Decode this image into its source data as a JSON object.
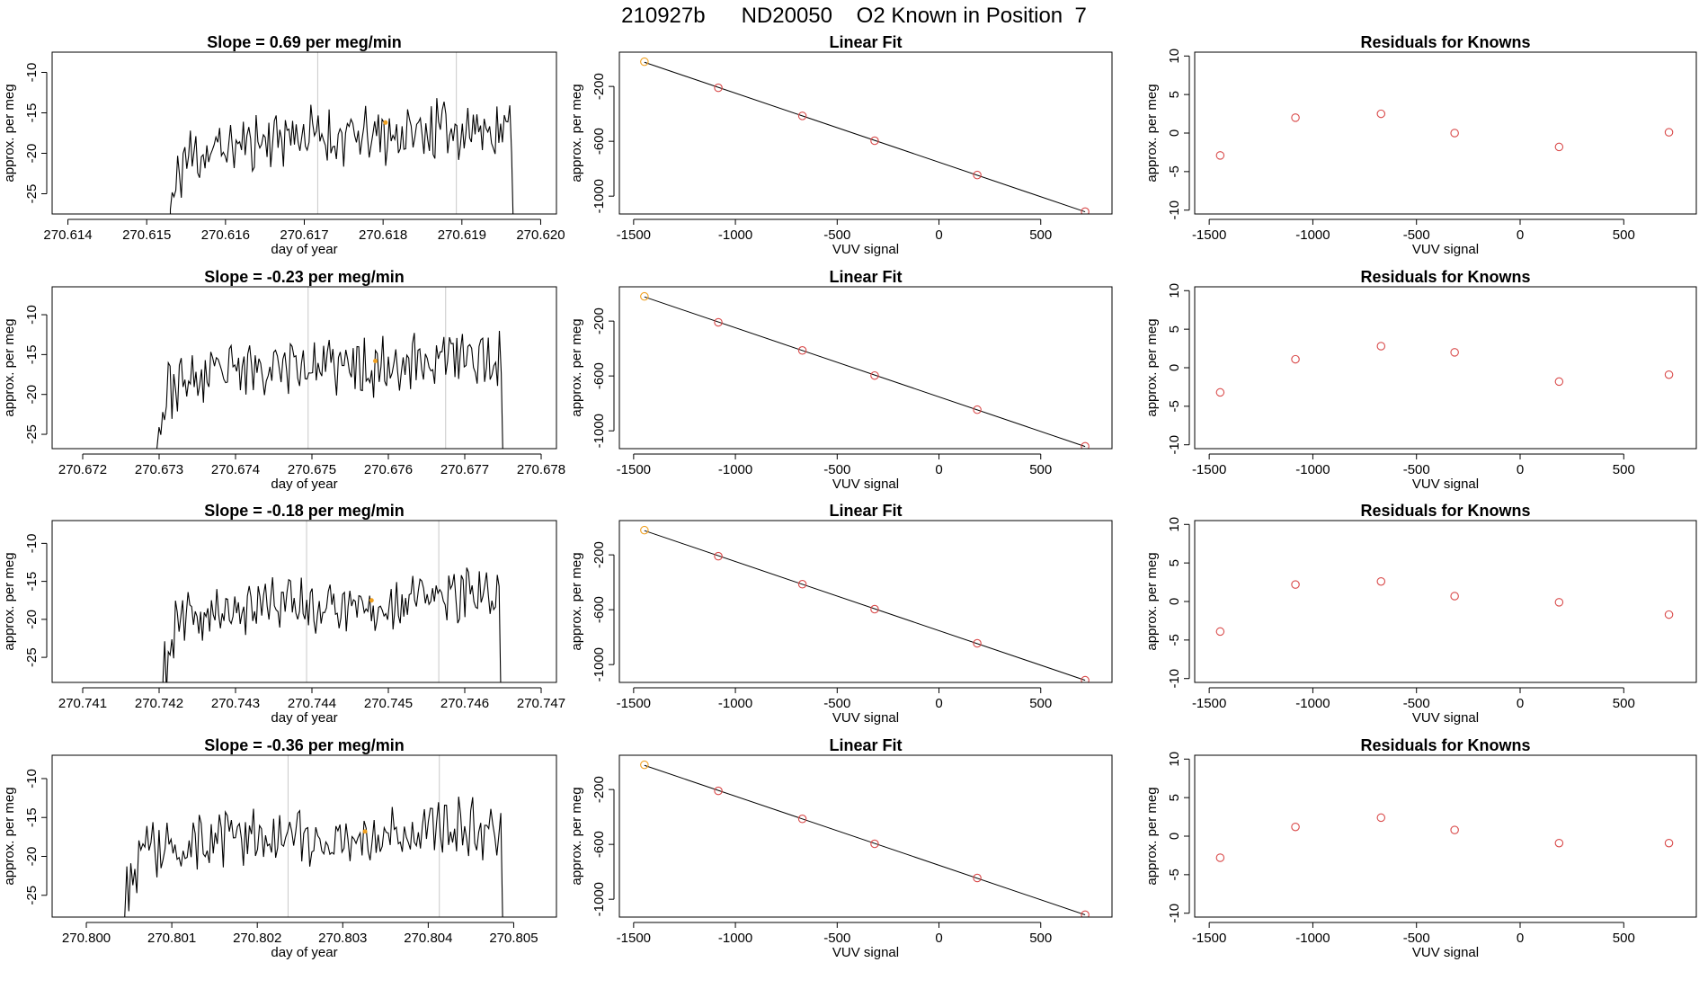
{
  "header": {
    "title": "210927b      ND20050    O2 Known in Position  7"
  },
  "colors": {
    "line": "#000000",
    "grid_vline": "#c8c8c8",
    "point": "#d94a4a",
    "highlight": "#f0a020"
  },
  "chart_data": [
    {
      "type": "line",
      "panel": "timeseries",
      "row": 1,
      "title": "Slope =  0.69  per meg/min",
      "xlabel": "day of year",
      "ylabel": "approx. per meg",
      "xlim": [
        270.6138,
        270.6202
      ],
      "ylim": [
        -27.5,
        -7.5
      ],
      "xticks": [
        "270.614",
        "270.615",
        "270.616",
        "270.617",
        "270.618",
        "270.619",
        "270.620"
      ],
      "xtick_values": [
        270.614,
        270.615,
        270.616,
        270.617,
        270.618,
        270.619,
        270.62
      ],
      "yticks": [
        -25,
        -20,
        -15,
        -10
      ],
      "vlines": [
        270.61717,
        270.61893
      ],
      "x_range": [
        270.6153,
        270.6197
      ],
      "ramp_start": -27,
      "plateau": -17.5,
      "highlight": [
        270.61803,
        -16.2
      ],
      "seed": 11
    },
    {
      "type": "line",
      "panel": "timeseries",
      "row": 2,
      "title": "Slope =  -0.23  per meg/min",
      "xlabel": "day of year",
      "ylabel": "approx. per meg",
      "xlim": [
        270.6716,
        270.6782
      ],
      "ylim": [
        -26.8,
        -6.5
      ],
      "xticks": [
        "270.672",
        "270.673",
        "270.674",
        "270.675",
        "270.676",
        "270.677",
        "270.678"
      ],
      "xtick_values": [
        270.672,
        270.673,
        270.674,
        270.675,
        270.676,
        270.677,
        270.678
      ],
      "yticks": [
        -25,
        -20,
        -15,
        -10
      ],
      "vlines": [
        270.67495,
        270.67675
      ],
      "x_range": [
        270.67295,
        270.67755
      ],
      "ramp_start": -26,
      "plateau": -16,
      "highlight": [
        270.67583,
        -15.8
      ],
      "seed": 23
    },
    {
      "type": "line",
      "panel": "timeseries",
      "row": 3,
      "title": "Slope =  -0.18  per meg/min",
      "xlabel": "day of year",
      "ylabel": "approx. per meg",
      "xlim": [
        270.7406,
        270.7472
      ],
      "ylim": [
        -28.3,
        -7.0
      ],
      "xticks": [
        "270.741",
        "270.742",
        "270.743",
        "270.744",
        "270.745",
        "270.746",
        "270.747"
      ],
      "xtick_values": [
        270.741,
        270.742,
        270.743,
        270.744,
        270.745,
        270.746,
        270.747
      ],
      "yticks": [
        -25,
        -20,
        -15,
        -10
      ],
      "vlines": [
        270.74393,
        270.74566
      ],
      "x_range": [
        270.74205,
        270.74652
      ],
      "ramp_start": -28,
      "plateau": -17.5,
      "highlight": [
        270.74478,
        -17.5
      ],
      "seed": 37
    },
    {
      "type": "line",
      "panel": "timeseries",
      "row": 4,
      "title": "Slope =  -0.36  per meg/min",
      "xlabel": "day of year",
      "ylabel": "approx. per meg",
      "xlim": [
        270.7996,
        270.8055
      ],
      "ylim": [
        -27.8,
        -7.0
      ],
      "xticks": [
        "270.800",
        "270.801",
        "270.802",
        "270.803",
        "270.804",
        "270.805"
      ],
      "xtick_values": [
        270.8,
        270.801,
        270.802,
        270.803,
        270.804,
        270.805
      ],
      "yticks": [
        -25,
        -20,
        -15,
        -10
      ],
      "vlines": [
        270.80236,
        270.80413
      ],
      "x_range": [
        270.80045,
        270.80492
      ],
      "ramp_start": -25,
      "plateau": -17,
      "highlight": [
        270.80326,
        -16.8
      ],
      "seed": 53
    },
    {
      "type": "scatter",
      "panel": "fit",
      "row": 1,
      "title": "Linear Fit",
      "xlabel": "VUV signal",
      "ylabel": "approx. per meg",
      "xlim": [
        -1570,
        850
      ],
      "ylim": [
        -1130,
        50
      ],
      "xticks": [
        -1500,
        -1000,
        -500,
        0,
        500
      ],
      "yticks": [
        -1000,
        -600,
        -200
      ],
      "x": [
        -1447,
        -1084,
        -671,
        -316,
        188,
        718
      ],
      "y": [
        -20,
        -210,
        -415,
        -596,
        -846,
        -1113
      ]
    },
    {
      "type": "scatter",
      "panel": "fit",
      "row": 2,
      "title": "Linear Fit",
      "xlabel": "VUV signal",
      "ylabel": "approx. per meg",
      "xlim": [
        -1570,
        850
      ],
      "ylim": [
        -1130,
        50
      ],
      "xticks": [
        -1500,
        -1000,
        -500,
        0,
        500
      ],
      "yticks": [
        -1000,
        -600,
        -200
      ],
      "x": [
        -1447,
        -1084,
        -671,
        -316,
        188,
        718
      ],
      "y": [
        -20,
        -209,
        -414,
        -597,
        -846,
        -1113
      ]
    },
    {
      "type": "scatter",
      "panel": "fit",
      "row": 3,
      "title": "Linear Fit",
      "xlabel": "VUV signal",
      "ylabel": "approx. per meg",
      "xlim": [
        -1570,
        850
      ],
      "ylim": [
        -1130,
        50
      ],
      "xticks": [
        -1500,
        -1000,
        -500,
        0,
        500
      ],
      "yticks": [
        -1000,
        -600,
        -200
      ],
      "x": [
        -1447,
        -1084,
        -671,
        -316,
        188,
        718
      ],
      "y": [
        -20,
        -210,
        -414,
        -596,
        -845,
        -1114
      ]
    },
    {
      "type": "scatter",
      "panel": "fit",
      "row": 4,
      "title": "Linear Fit",
      "xlabel": "VUV signal",
      "ylabel": "approx. per meg",
      "xlim": [
        -1570,
        850
      ],
      "ylim": [
        -1130,
        50
      ],
      "xticks": [
        -1500,
        -1000,
        -500,
        0,
        500
      ],
      "yticks": [
        -1000,
        -600,
        -200
      ],
      "x": [
        -1447,
        -1084,
        -671,
        -316,
        188,
        718
      ],
      "y": [
        -20,
        -210,
        -414,
        -596,
        -845,
        -1113
      ]
    },
    {
      "type": "scatter",
      "panel": "residual",
      "row": 1,
      "title": "Residuals for Knowns",
      "xlabel": "VUV signal",
      "ylabel": "approx. per meg",
      "xlim": [
        -1570,
        850
      ],
      "ylim": [
        -10.5,
        10.5
      ],
      "xticks": [
        -1500,
        -1000,
        -500,
        0,
        500
      ],
      "yticks": [
        -10,
        -5,
        0,
        5,
        10
      ],
      "x": [
        -1447,
        -1084,
        -671,
        -316,
        188,
        718
      ],
      "y": [
        -2.9,
        2.0,
        2.5,
        0.0,
        -1.8,
        0.1
      ]
    },
    {
      "type": "scatter",
      "panel": "residual",
      "row": 2,
      "title": "Residuals for Knowns",
      "xlabel": "VUV signal",
      "ylabel": "approx. per meg",
      "xlim": [
        -1570,
        850
      ],
      "ylim": [
        -10.5,
        10.5
      ],
      "xticks": [
        -1500,
        -1000,
        -500,
        0,
        500
      ],
      "yticks": [
        -10,
        -5,
        0,
        5,
        10
      ],
      "x": [
        -1447,
        -1084,
        -671,
        -316,
        188,
        718
      ],
      "y": [
        -3.2,
        1.1,
        2.8,
        2.0,
        -1.8,
        -0.9
      ]
    },
    {
      "type": "scatter",
      "panel": "residual",
      "row": 3,
      "title": "Residuals for Knowns",
      "xlabel": "VUV signal",
      "ylabel": "approx. per meg",
      "xlim": [
        -1570,
        850
      ],
      "ylim": [
        -10.5,
        10.5
      ],
      "xticks": [
        -1500,
        -1000,
        -500,
        0,
        500
      ],
      "yticks": [
        -10,
        -5,
        0,
        5,
        10
      ],
      "x": [
        -1447,
        -1084,
        -671,
        -316,
        188,
        718
      ],
      "y": [
        -3.9,
        2.2,
        2.6,
        0.7,
        -0.1,
        -1.7
      ]
    },
    {
      "type": "scatter",
      "panel": "residual",
      "row": 4,
      "title": "Residuals for Knowns",
      "xlabel": "VUV signal",
      "ylabel": "approx. per meg",
      "xlim": [
        -1570,
        850
      ],
      "ylim": [
        -10.5,
        10.5
      ],
      "xticks": [
        -1500,
        -1000,
        -500,
        0,
        500
      ],
      "yticks": [
        -10,
        -5,
        0,
        5,
        10
      ],
      "x": [
        -1447,
        -1084,
        -671,
        -316,
        188,
        718
      ],
      "y": [
        -2.8,
        1.2,
        2.4,
        0.8,
        -0.9,
        -0.9
      ]
    }
  ]
}
